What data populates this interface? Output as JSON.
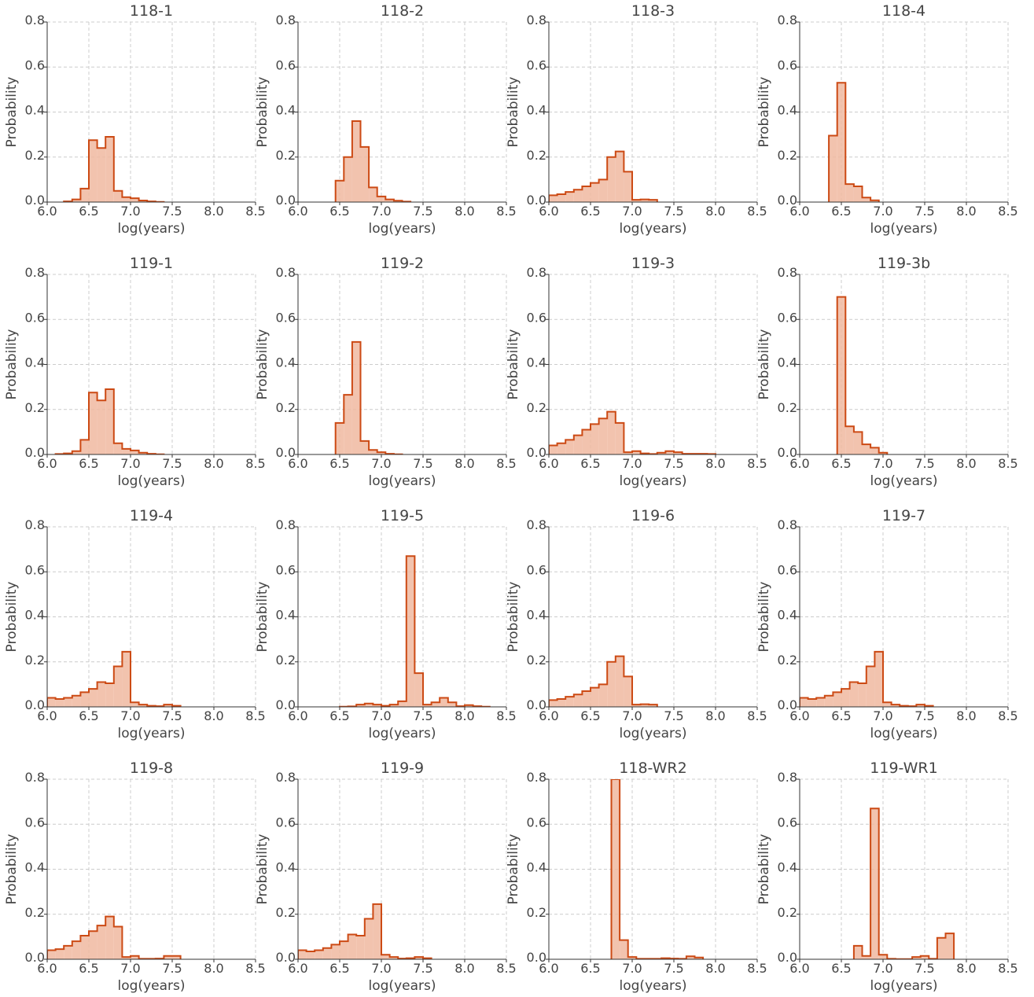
{
  "chart_data": [
    {
      "type": "bar",
      "title": "118-1",
      "xlabel": "log(years)",
      "ylabel": "Probability",
      "xlim": [
        6.0,
        8.5
      ],
      "ylim": [
        0,
        0.8
      ],
      "xticks": [
        "6.0",
        "6.5",
        "7.0",
        "7.5",
        "8.0",
        "8.5"
      ],
      "yticks": [
        "0.0",
        "0.2",
        "0.4",
        "0.6",
        "0.8"
      ],
      "grid": true,
      "bin_edges": [
        6.2,
        6.3,
        6.4,
        6.5,
        6.6,
        6.7,
        6.8,
        6.9,
        7.0,
        7.1,
        7.2,
        7.3,
        7.4
      ],
      "values": [
        0.003,
        0.012,
        0.06,
        0.275,
        0.24,
        0.29,
        0.05,
        0.022,
        0.017,
        0.007,
        0.003,
        0.001
      ]
    },
    {
      "type": "bar",
      "title": "118-2",
      "xlabel": "log(years)",
      "ylabel": "Probability",
      "xlim": [
        6.0,
        8.5
      ],
      "ylim": [
        0,
        0.8
      ],
      "xticks": [
        "6.0",
        "6.5",
        "7.0",
        "7.5",
        "8.0",
        "8.5"
      ],
      "yticks": [
        "0.0",
        "0.2",
        "0.4",
        "0.6",
        "0.8"
      ],
      "grid": true,
      "bin_edges": [
        6.45,
        6.55,
        6.65,
        6.75,
        6.85,
        6.95,
        7.05,
        7.15,
        7.25,
        7.35
      ],
      "values": [
        0.095,
        0.2,
        0.36,
        0.245,
        0.065,
        0.025,
        0.012,
        0.006,
        0.002
      ]
    },
    {
      "type": "bar",
      "title": "118-3",
      "xlabel": "log(years)",
      "ylabel": "Probability",
      "xlim": [
        6.0,
        8.5
      ],
      "ylim": [
        0,
        0.8
      ],
      "xticks": [
        "6.0",
        "6.5",
        "7.0",
        "7.5",
        "8.0",
        "8.5"
      ],
      "yticks": [
        "0.0",
        "0.2",
        "0.4",
        "0.6",
        "0.8"
      ],
      "grid": true,
      "bin_edges": [
        6.0,
        6.1,
        6.2,
        6.3,
        6.4,
        6.5,
        6.6,
        6.7,
        6.8,
        6.9,
        7.0,
        7.1,
        7.2,
        7.3
      ],
      "values": [
        0.03,
        0.035,
        0.045,
        0.055,
        0.07,
        0.085,
        0.1,
        0.2,
        0.225,
        0.135,
        0.01,
        0.012,
        0.01
      ]
    },
    {
      "type": "bar",
      "title": "118-4",
      "xlabel": "log(years)",
      "ylabel": "Probability",
      "xlim": [
        6.0,
        8.5
      ],
      "ylim": [
        0,
        0.8
      ],
      "xticks": [
        "6.0",
        "6.5",
        "7.0",
        "7.5",
        "8.0",
        "8.5"
      ],
      "yticks": [
        "0.0",
        "0.2",
        "0.4",
        "0.6",
        "0.8"
      ],
      "grid": true,
      "bin_edges": [
        6.35,
        6.45,
        6.55,
        6.65,
        6.75,
        6.85,
        6.95
      ],
      "values": [
        0.295,
        0.53,
        0.08,
        0.07,
        0.02,
        0.008
      ]
    },
    {
      "type": "bar",
      "title": "119-1",
      "xlabel": "log(years)",
      "ylabel": "Probability",
      "xlim": [
        6.0,
        8.5
      ],
      "ylim": [
        0,
        0.8
      ],
      "xticks": [
        "6.0",
        "6.5",
        "7.0",
        "7.5",
        "8.0",
        "8.5"
      ],
      "yticks": [
        "0.0",
        "0.2",
        "0.4",
        "0.6",
        "0.8"
      ],
      "grid": true,
      "bin_edges": [
        6.1,
        6.2,
        6.3,
        6.4,
        6.5,
        6.6,
        6.7,
        6.8,
        6.9,
        7.0,
        7.1,
        7.2,
        7.3,
        7.4
      ],
      "values": [
        0.002,
        0.005,
        0.015,
        0.065,
        0.275,
        0.24,
        0.29,
        0.05,
        0.025,
        0.018,
        0.008,
        0.003,
        0.001
      ]
    },
    {
      "type": "bar",
      "title": "119-2",
      "xlabel": "log(years)",
      "ylabel": "Probability",
      "xlim": [
        6.0,
        8.5
      ],
      "ylim": [
        0,
        0.8
      ],
      "xticks": [
        "6.0",
        "6.5",
        "7.0",
        "7.5",
        "8.0",
        "8.5"
      ],
      "yticks": [
        "0.0",
        "0.2",
        "0.4",
        "0.6",
        "0.8"
      ],
      "grid": true,
      "bin_edges": [
        6.45,
        6.55,
        6.65,
        6.75,
        6.85,
        6.95,
        7.05,
        7.15,
        7.25
      ],
      "values": [
        0.14,
        0.265,
        0.5,
        0.06,
        0.02,
        0.01,
        0.003,
        0.001
      ]
    },
    {
      "type": "bar",
      "title": "119-3",
      "xlabel": "log(years)",
      "ylabel": "Probability",
      "xlim": [
        6.0,
        8.5
      ],
      "ylim": [
        0,
        0.8
      ],
      "xticks": [
        "6.0",
        "6.5",
        "7.0",
        "7.5",
        "8.0",
        "8.5"
      ],
      "yticks": [
        "0.0",
        "0.2",
        "0.4",
        "0.6",
        "0.8"
      ],
      "grid": true,
      "bin_edges": [
        6.0,
        6.1,
        6.2,
        6.3,
        6.4,
        6.5,
        6.6,
        6.7,
        6.8,
        6.9,
        7.0,
        7.1,
        7.2,
        7.3,
        7.4,
        7.5,
        7.6,
        7.7,
        7.8,
        7.9,
        8.0
      ],
      "values": [
        0.04,
        0.05,
        0.065,
        0.085,
        0.11,
        0.135,
        0.16,
        0.19,
        0.14,
        0.01,
        0.015,
        0.005,
        0.002,
        0.008,
        0.015,
        0.01,
        0.003,
        0.003,
        0.003,
        0.002
      ]
    },
    {
      "type": "bar",
      "title": "119-3b",
      "xlabel": "log(years)",
      "ylabel": "Probability",
      "xlim": [
        6.0,
        8.5
      ],
      "ylim": [
        0,
        0.8
      ],
      "xticks": [
        "6.0",
        "6.5",
        "7.0",
        "7.5",
        "8.0",
        "8.5"
      ],
      "yticks": [
        "0.0",
        "0.2",
        "0.4",
        "0.6",
        "0.8"
      ],
      "grid": true,
      "bin_edges": [
        6.45,
        6.55,
        6.65,
        6.75,
        6.85,
        6.95,
        7.05
      ],
      "values": [
        0.7,
        0.125,
        0.1,
        0.045,
        0.03,
        0.008
      ]
    },
    {
      "type": "bar",
      "title": "119-4",
      "xlabel": "log(years)",
      "ylabel": "Probability",
      "xlim": [
        6.0,
        8.5
      ],
      "ylim": [
        0,
        0.8
      ],
      "xticks": [
        "6.0",
        "6.5",
        "7.0",
        "7.5",
        "8.0",
        "8.5"
      ],
      "yticks": [
        "0.0",
        "0.2",
        "0.4",
        "0.6",
        "0.8"
      ],
      "grid": true,
      "bin_edges": [
        6.0,
        6.1,
        6.2,
        6.3,
        6.4,
        6.5,
        6.6,
        6.7,
        6.8,
        6.9,
        7.0,
        7.1,
        7.2,
        7.3,
        7.4,
        7.5,
        7.6
      ],
      "values": [
        0.04,
        0.035,
        0.04,
        0.05,
        0.065,
        0.08,
        0.11,
        0.105,
        0.18,
        0.245,
        0.02,
        0.01,
        0.005,
        0.003,
        0.01,
        0.005
      ]
    },
    {
      "type": "bar",
      "title": "119-5",
      "xlabel": "log(years)",
      "ylabel": "Probability",
      "xlim": [
        6.0,
        8.5
      ],
      "ylim": [
        0,
        0.8
      ],
      "xticks": [
        "6.0",
        "6.5",
        "7.0",
        "7.5",
        "8.0",
        "8.5"
      ],
      "yticks": [
        "0.0",
        "0.2",
        "0.4",
        "0.6",
        "0.8"
      ],
      "grid": true,
      "bin_edges": [
        6.5,
        6.6,
        6.7,
        6.8,
        6.9,
        7.0,
        7.1,
        7.2,
        7.3,
        7.4,
        7.5,
        7.6,
        7.7,
        7.8,
        7.9,
        8.0,
        8.1,
        8.2,
        8.3
      ],
      "values": [
        0.001,
        0.002,
        0.01,
        0.015,
        0.01,
        0.005,
        0.01,
        0.025,
        0.67,
        0.15,
        0.01,
        0.02,
        0.04,
        0.02,
        0.003,
        0.008,
        0.003,
        0.001
      ]
    },
    {
      "type": "bar",
      "title": "119-6",
      "xlabel": "log(years)",
      "ylabel": "Probability",
      "xlim": [
        6.0,
        8.5
      ],
      "ylim": [
        0,
        0.8
      ],
      "xticks": [
        "6.0",
        "6.5",
        "7.0",
        "7.5",
        "8.0",
        "8.5"
      ],
      "yticks": [
        "0.0",
        "0.2",
        "0.4",
        "0.6",
        "0.8"
      ],
      "grid": true,
      "bin_edges": [
        6.0,
        6.1,
        6.2,
        6.3,
        6.4,
        6.5,
        6.6,
        6.7,
        6.8,
        6.9,
        7.0,
        7.1,
        7.2,
        7.3
      ],
      "values": [
        0.03,
        0.035,
        0.045,
        0.055,
        0.07,
        0.085,
        0.1,
        0.2,
        0.225,
        0.135,
        0.01,
        0.012,
        0.01
      ]
    },
    {
      "type": "bar",
      "title": "119-7",
      "xlabel": "log(years)",
      "ylabel": "Probability",
      "xlim": [
        6.0,
        8.5
      ],
      "ylim": [
        0,
        0.8
      ],
      "xticks": [
        "6.0",
        "6.5",
        "7.0",
        "7.5",
        "8.0",
        "8.5"
      ],
      "yticks": [
        "0.0",
        "0.2",
        "0.4",
        "0.6",
        "0.8"
      ],
      "grid": true,
      "bin_edges": [
        6.0,
        6.1,
        6.2,
        6.3,
        6.4,
        6.5,
        6.6,
        6.7,
        6.8,
        6.9,
        7.0,
        7.1,
        7.2,
        7.3,
        7.4,
        7.5,
        7.6
      ],
      "values": [
        0.04,
        0.035,
        0.04,
        0.05,
        0.065,
        0.08,
        0.11,
        0.105,
        0.18,
        0.245,
        0.02,
        0.01,
        0.005,
        0.003,
        0.01,
        0.005
      ]
    },
    {
      "type": "bar",
      "title": "119-8",
      "xlabel": "log(years)",
      "ylabel": "Probability",
      "xlim": [
        6.0,
        8.5
      ],
      "ylim": [
        0,
        0.8
      ],
      "xticks": [
        "6.0",
        "6.5",
        "7.0",
        "7.5",
        "8.0",
        "8.5"
      ],
      "yticks": [
        "0.0",
        "0.2",
        "0.4",
        "0.6",
        "0.8"
      ],
      "grid": true,
      "bin_edges": [
        6.0,
        6.1,
        6.2,
        6.3,
        6.4,
        6.5,
        6.6,
        6.7,
        6.8,
        6.9,
        7.0,
        7.1,
        7.2,
        7.3,
        7.4,
        7.5,
        7.6
      ],
      "values": [
        0.04,
        0.045,
        0.06,
        0.08,
        0.105,
        0.125,
        0.15,
        0.19,
        0.145,
        0.01,
        0.015,
        0.002,
        0.002,
        0.003,
        0.015,
        0.015
      ]
    },
    {
      "type": "bar",
      "title": "119-9",
      "xlabel": "log(years)",
      "ylabel": "Probability",
      "xlim": [
        6.0,
        8.5
      ],
      "ylim": [
        0,
        0.8
      ],
      "xticks": [
        "6.0",
        "6.5",
        "7.0",
        "7.5",
        "8.0",
        "8.5"
      ],
      "yticks": [
        "0.0",
        "0.2",
        "0.4",
        "0.6",
        "0.8"
      ],
      "grid": true,
      "bin_edges": [
        6.0,
        6.1,
        6.2,
        6.3,
        6.4,
        6.5,
        6.6,
        6.7,
        6.8,
        6.9,
        7.0,
        7.1,
        7.2,
        7.3,
        7.4,
        7.5,
        7.6
      ],
      "values": [
        0.04,
        0.035,
        0.04,
        0.05,
        0.065,
        0.08,
        0.11,
        0.105,
        0.18,
        0.245,
        0.02,
        0.01,
        0.003,
        0.005,
        0.01,
        0.005
      ]
    },
    {
      "type": "bar",
      "title": "118-WR2",
      "xlabel": "log(years)",
      "ylabel": "Probability",
      "xlim": [
        6.0,
        8.5
      ],
      "ylim": [
        0,
        0.8
      ],
      "xticks": [
        "6.0",
        "6.5",
        "7.0",
        "7.5",
        "8.0",
        "8.5"
      ],
      "yticks": [
        "0.0",
        "0.2",
        "0.4",
        "0.6",
        "0.8"
      ],
      "grid": true,
      "bin_edges": [
        6.75,
        6.85,
        6.95,
        7.05,
        7.15,
        7.25,
        7.35,
        7.45,
        7.55,
        7.65,
        7.75,
        7.85
      ],
      "values": [
        0.82,
        0.085,
        0.01,
        0.002,
        0.002,
        0.002,
        0.005,
        0.003,
        0.002,
        0.013,
        0.008
      ]
    },
    {
      "type": "bar",
      "title": "119-WR1",
      "xlabel": "log(years)",
      "ylabel": "Probability",
      "xlim": [
        6.0,
        8.5
      ],
      "ylim": [
        0,
        0.8
      ],
      "xticks": [
        "6.0",
        "6.5",
        "7.0",
        "7.5",
        "8.0",
        "8.5"
      ],
      "yticks": [
        "0.0",
        "0.2",
        "0.4",
        "0.6",
        "0.8"
      ],
      "grid": true,
      "bin_edges": [
        6.65,
        6.75,
        6.85,
        6.95,
        7.05,
        7.15,
        7.25,
        7.35,
        7.45,
        7.55,
        7.65,
        7.75,
        7.85
      ],
      "values": [
        0.06,
        0.015,
        0.67,
        0.02,
        0.002,
        0.001,
        0.001,
        0.01,
        0.015,
        0.002,
        0.095,
        0.115
      ]
    }
  ]
}
